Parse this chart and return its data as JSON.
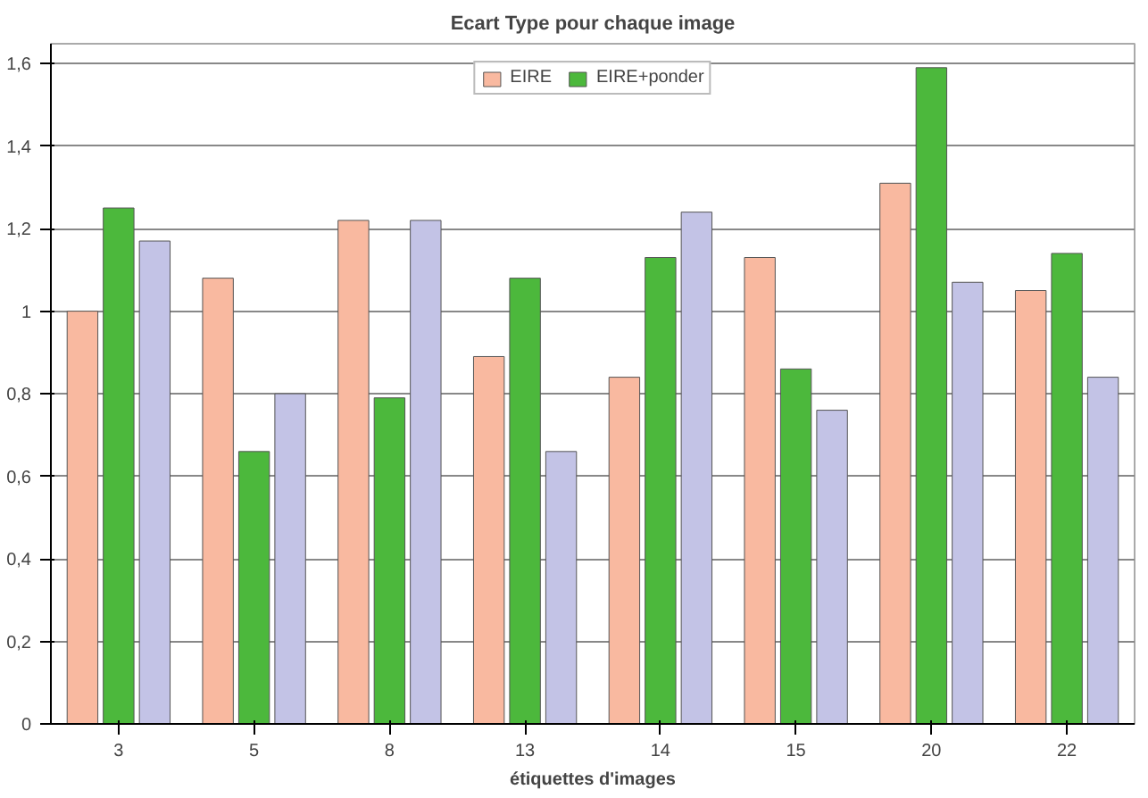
{
  "chart_data": {
    "type": "bar",
    "title": "Ecart Type pour chaque image",
    "xlabel": "étiquettes d'images",
    "categories": [
      "3",
      "5",
      "8",
      "13",
      "14",
      "15",
      "20",
      "22"
    ],
    "series": [
      {
        "name": "EIRE",
        "color": "#f9b9a0",
        "values": [
          1.0,
          1.08,
          1.22,
          0.89,
          0.84,
          1.13,
          1.31,
          1.05
        ]
      },
      {
        "name": "EIRE+ponder",
        "color": "#4cb83c",
        "values": [
          1.25,
          0.66,
          0.79,
          1.08,
          1.13,
          0.86,
          1.59,
          1.14
        ]
      },
      {
        "color": "#c3c3e6",
        "values": [
          1.17,
          0.8,
          1.22,
          0.66,
          1.24,
          0.76,
          1.07,
          0.84
        ]
      }
    ],
    "ylim": [
      0,
      1.6
    ],
    "yticks": [
      0,
      {
        "value": 0.2,
        "label": "0,2"
      },
      {
        "value": 0.4,
        "label": "0,4"
      },
      {
        "value": 0.6,
        "label": "0,6"
      },
      {
        "value": 0.8,
        "label": "0,8"
      },
      1,
      {
        "value": 1.2,
        "label": "1,2"
      },
      {
        "value": 1.4,
        "label": "1,4"
      },
      {
        "value": 1.6,
        "label": "1,6"
      }
    ],
    "grid": "y",
    "legend": "top"
  }
}
